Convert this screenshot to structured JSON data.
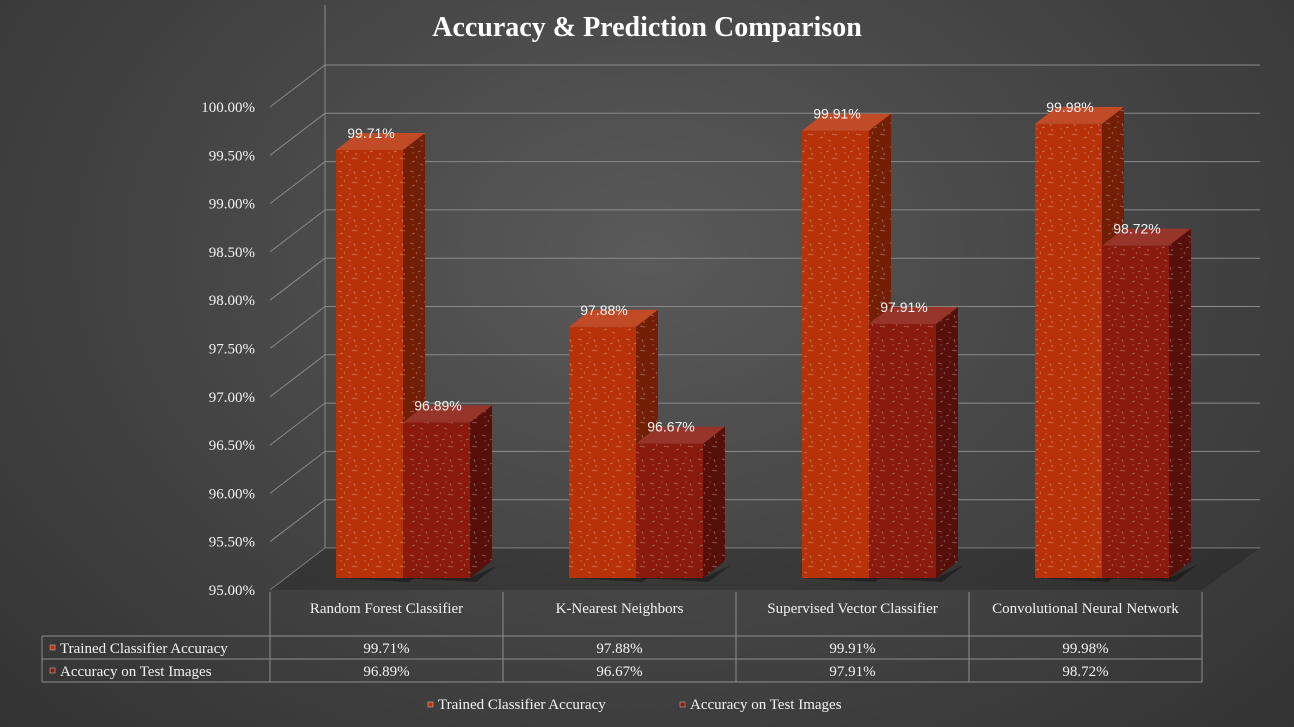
{
  "chart_data": {
    "type": "bar",
    "title": "Accuracy & Prediction Comparison",
    "categories": [
      "Random Forest Classifier",
      "K-Nearest Neighbors",
      "Supervised Vector Classifier",
      "Convolutional Neural Network"
    ],
    "series": [
      {
        "name": "Trained Classifier Accuracy",
        "values": [
          99.71,
          97.88,
          99.91,
          99.98
        ],
        "labels": [
          "99.71%",
          "97.88%",
          "99.91%",
          "99.98%"
        ],
        "color": "#b83209"
      },
      {
        "name": "Accuracy on Test Images",
        "values": [
          96.89,
          96.67,
          97.91,
          98.72
        ],
        "labels": [
          "96.89%",
          "96.67%",
          "97.91%",
          "98.72%"
        ],
        "color": "#8a1a0e"
      }
    ],
    "ylim": [
      95,
      100
    ],
    "y_ticks": [
      "95.00%",
      "95.50%",
      "96.00%",
      "96.50%",
      "97.00%",
      "97.50%",
      "98.00%",
      "98.50%",
      "99.00%",
      "99.50%",
      "100.00%"
    ],
    "grid": true,
    "legend": "bottom",
    "data_table": true,
    "style": "3d-clustered-column"
  }
}
